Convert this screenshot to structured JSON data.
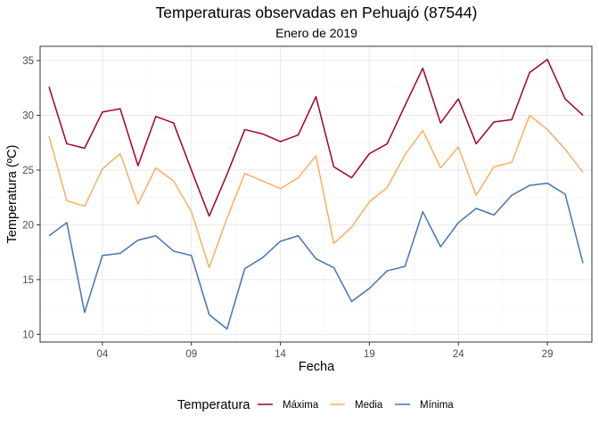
{
  "chart_data": {
    "type": "line",
    "title": "Temperaturas observadas en Pehuajó (87544)",
    "subtitle": "Enero de 2019",
    "xlabel": "Fecha",
    "ylabel": "Temperatura (ºC)",
    "x_dates": [
      "2019-01-01",
      "2019-01-02",
      "2019-01-03",
      "2019-01-04",
      "2019-01-05",
      "2019-01-06",
      "2019-01-07",
      "2019-01-08",
      "2019-01-09",
      "2019-01-10",
      "2019-01-11",
      "2019-01-12",
      "2019-01-13",
      "2019-01-14",
      "2019-01-15",
      "2019-01-16",
      "2019-01-17",
      "2019-01-18",
      "2019-01-19",
      "2019-01-20",
      "2019-01-21",
      "2019-01-22",
      "2019-01-23",
      "2019-01-24",
      "2019-01-25",
      "2019-01-26",
      "2019-01-27",
      "2019-01-28",
      "2019-01-29",
      "2019-01-30",
      "2019-01-31"
    ],
    "x_tick_dates": [
      "2019-01-04",
      "2019-01-09",
      "2019-01-14",
      "2019-01-19",
      "2019-01-24",
      "2019-01-29"
    ],
    "x_tick_labels": [
      "04",
      "09",
      "14",
      "19",
      "24",
      "29"
    ],
    "y_ticks": [
      10,
      15,
      20,
      25,
      30,
      35
    ],
    "ylim": [
      9.3,
      36.3
    ],
    "xlim": [
      "2018-12-31T12:00",
      "2019-01-31T12:00"
    ],
    "grid": true,
    "legend": {
      "title": "Temperatura",
      "position": "bottom"
    },
    "series": [
      {
        "name": "Máxima",
        "color": "#A50026",
        "values": [
          32.6,
          27.4,
          27.0,
          30.3,
          30.6,
          25.4,
          29.9,
          29.3,
          25.0,
          20.8,
          24.6,
          28.7,
          28.3,
          27.6,
          28.2,
          31.7,
          25.3,
          24.3,
          26.5,
          27.4,
          30.9,
          34.3,
          29.3,
          31.5,
          27.4,
          29.4,
          29.6,
          33.9,
          35.1,
          31.5,
          30.0
        ]
      },
      {
        "name": "Media",
        "color": "#FDAE61",
        "values": [
          28.1,
          22.2,
          21.7,
          25.1,
          26.5,
          21.9,
          25.2,
          24.0,
          21.2,
          16.1,
          20.6,
          24.7,
          24.0,
          23.3,
          24.3,
          26.3,
          18.3,
          19.8,
          22.1,
          23.4,
          26.4,
          28.6,
          25.2,
          27.1,
          22.7,
          25.3,
          25.7,
          30.0,
          28.7,
          26.9,
          24.8
        ]
      },
      {
        "name": "Mínima",
        "color": "#4575B4",
        "values": [
          19.0,
          20.2,
          12.0,
          17.2,
          17.4,
          18.6,
          19.0,
          17.6,
          17.2,
          11.8,
          10.5,
          16.0,
          17.0,
          18.5,
          19.0,
          16.9,
          16.1,
          13.0,
          14.2,
          15.8,
          16.2,
          21.2,
          18.0,
          20.2,
          21.5,
          20.9,
          22.7,
          23.6,
          23.8,
          22.8,
          16.5
        ]
      }
    ]
  }
}
